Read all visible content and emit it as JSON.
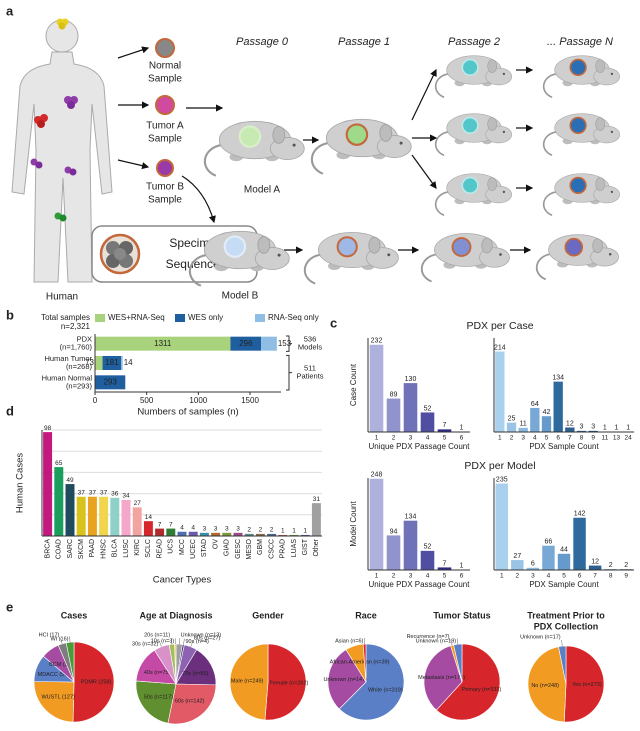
{
  "figure": {
    "panel_labels": [
      "a",
      "b",
      "c",
      "d",
      "e"
    ]
  },
  "diagram": {
    "passages": [
      "Passage 0",
      "Passage 1",
      "Passage 2",
      "... Passage N"
    ],
    "samples": [
      [
        "Normal",
        "Sample"
      ],
      [
        "Tumor A",
        "Sample"
      ],
      [
        "Tumor B",
        "Sample"
      ]
    ],
    "specimen": [
      "Specimen",
      "Sequenced"
    ],
    "human": "Human",
    "models": [
      "Model A",
      "Model B"
    ]
  },
  "chart_data": [
    {
      "type": "hbar",
      "stacked": true,
      "total_label": "Total samples",
      "total": "n=2,321",
      "categories": [
        [
          "PDX",
          "(n=1,760)"
        ],
        [
          "Human Tumor",
          "(n=268)"
        ],
        [
          "Human Normal",
          "(n=293)"
        ]
      ],
      "series": [
        {
          "name": "WES+RNA-Seq",
          "color": "#a8d37c",
          "values": [
            1311,
            73,
            null
          ]
        },
        {
          "name": "WES only",
          "color": "#1f5f9f",
          "values": [
            296,
            181,
            293
          ]
        },
        {
          "name": "RNA-Seq only",
          "color": "#8fbde3",
          "values": [
            153,
            14,
            null
          ]
        }
      ],
      "brackets": [
        {
          "value": 536,
          "label": "Models"
        },
        {
          "value": 511,
          "label": "Patients"
        }
      ],
      "xlim": [
        0,
        1800
      ],
      "xticks": [
        0,
        500,
        1000,
        1500
      ],
      "xlabel": "Numbers of samples (n)"
    },
    {
      "type": "bar",
      "title": "PDX per Case",
      "ylabel": "Case Count",
      "xlabel": "Unique PDX Passage Count",
      "categories": [
        "1",
        "2",
        "3",
        "4",
        "5",
        "6"
      ],
      "values": [
        232,
        89,
        130,
        52,
        7,
        1
      ],
      "colors": [
        "#aeb1dc",
        "#9093cc",
        "#7072b8",
        "#4f4ea1",
        "#2e2b86",
        "#1b1766"
      ],
      "ylim": [
        0,
        250
      ]
    },
    {
      "type": "bar",
      "xlabel": "PDX Sample Count",
      "categories": [
        "1",
        "2",
        "3",
        "4",
        "5",
        "6",
        "7",
        "8",
        "9",
        "11",
        "13",
        "24"
      ],
      "values": [
        214,
        25,
        11,
        64,
        42,
        134,
        12,
        3,
        3,
        1,
        1,
        1
      ],
      "colors": [
        "#a9d0ec",
        "#9ac4e6",
        "#8bb8df",
        "#78a9d6",
        "#6699cc",
        "#2f6a9f",
        "#2b5f92",
        "#275585",
        "#234b78",
        "#1f416b",
        "#1b375e",
        "#172d51"
      ],
      "ylim": [
        0,
        250
      ]
    },
    {
      "type": "bar",
      "title": "PDX per Model",
      "ylabel": "Model Count",
      "xlabel": "Unique PDX Passage Count",
      "categories": [
        "1",
        "2",
        "3",
        "4",
        "5",
        "6"
      ],
      "values": [
        248,
        94,
        134,
        52,
        7,
        1
      ],
      "colors": [
        "#aeb1dc",
        "#9093cc",
        "#7072b8",
        "#4f4ea1",
        "#2e2b86",
        "#1b1766"
      ],
      "ylim": [
        0,
        250
      ]
    },
    {
      "type": "bar",
      "xlabel": "PDX Sample Count",
      "categories": [
        "1",
        "2",
        "3",
        "4",
        "5",
        "6",
        "7",
        "8",
        "9"
      ],
      "values": [
        235,
        27,
        6,
        66,
        44,
        142,
        12,
        2,
        2
      ],
      "colors": [
        "#a9d0ec",
        "#9ac4e6",
        "#8bb8df",
        "#78a9d6",
        "#6699cc",
        "#2f6a9f",
        "#2b5f92",
        "#275585",
        "#234b78"
      ],
      "ylim": [
        0,
        250
      ]
    },
    {
      "type": "bar",
      "ylabel": "Human Cases",
      "xlabel": "Cancer Types",
      "categories": [
        "BRCA",
        "COAD",
        "SARC",
        "SKCM",
        "PAAD",
        "HNSC",
        "BLCA",
        "LUSC",
        "KIRC",
        "SCLC",
        "READ",
        "UCS",
        "MCC",
        "UCEC",
        "STAD",
        "OV",
        "GIAD",
        "GESC",
        "MESO",
        "GBM",
        "CSCC",
        "PRAD",
        "LUAS",
        "GIST",
        "Other"
      ],
      "values": [
        98,
        65,
        49,
        37,
        37,
        37,
        36,
        34,
        27,
        14,
        7,
        7,
        4,
        4,
        3,
        3,
        3,
        3,
        2,
        2,
        2,
        1,
        1,
        1,
        31
      ],
      "colors": [
        "#c4177f",
        "#1b9e5b",
        "#1f4b5c",
        "#d8c21c",
        "#e9a31f",
        "#f1d54d",
        "#8fd1c8",
        "#f4a7c9",
        "#f2a4a0",
        "#d7262b",
        "#b02c2c",
        "#2f7d33",
        "#4d6fb0",
        "#6a5bb0",
        "#3a8fb0",
        "#b06a2a",
        "#7a9a3a",
        "#9a4a8a",
        "#5a8a8a",
        "#8a6a4a",
        "#4a6a8a",
        "#aa5a5a",
        "#6a8a4a",
        "#5a5a9a",
        "#a0a0a0"
      ],
      "ylim": [
        0,
        100
      ],
      "ygrid": [
        20,
        40,
        60,
        80,
        100
      ]
    },
    {
      "type": "pie",
      "title": "Cases",
      "categories": [
        "PDMR",
        "WUSTL",
        "MDACC",
        "BCM",
        "HCI",
        "WI"
      ],
      "values": [
        258,
        127,
        56,
        38,
        17,
        16
      ],
      "value_labels": [
        "PDMR (258)",
        "WUSTL (127)",
        "MDACC (56)",
        "BCM (38)",
        "HCI (17)",
        "WI (16)"
      ],
      "colors": [
        "#d7262b",
        "#f29b22",
        "#5b7fc6",
        "#a54ba2",
        "#7d7d7d",
        "#4a9a3a"
      ]
    },
    {
      "type": "pie",
      "title": "Age at Diagnosis",
      "categories": [
        "Unknown",
        "90s",
        "80s",
        "70s",
        "60s",
        "50s",
        "40s",
        "30s",
        "20s",
        "10s"
      ],
      "values": [
        13,
        4,
        27,
        85,
        142,
        117,
        75,
        32,
        11,
        3
      ],
      "value_labels": [
        "Unknown (n=13)",
        "90s (n=4)",
        "80s (n=27)",
        "70s (n=85)",
        "60s (n=142)",
        "50s (n=117)",
        "40s (n=75)",
        "30s (n=32)",
        "20s (n=11)",
        "10s (n=3)"
      ],
      "colors": [
        "#9e9e9e",
        "#4b3a80",
        "#8e62b2",
        "#6b2f7e",
        "#e25a66",
        "#5f8f2e",
        "#c44aa6",
        "#d992c8",
        "#a0c060",
        "#f0c040"
      ]
    },
    {
      "type": "pie",
      "title": "Gender",
      "categories": [
        "Female",
        "Male"
      ],
      "values": [
        262,
        249
      ],
      "value_labels": [
        "Female (n=262)",
        "Male (n=249)"
      ],
      "colors": [
        "#d7262b",
        "#f29b22"
      ]
    },
    {
      "type": "pie",
      "title": "Race",
      "categories": [
        "White",
        "Unknown",
        "African-American",
        "Asian"
      ],
      "values": [
        319,
        147,
        39,
        6
      ],
      "value_labels": [
        "White (n=319)",
        "Unknown (n=147)",
        "African-American (n=39)",
        "Asian (n=6)"
      ],
      "colors": [
        "#5b7fc6",
        "#a54ba2",
        "#f29b22",
        "#d7262b"
      ]
    },
    {
      "type": "pie",
      "title": "Tumor Status",
      "categories": [
        "Primary",
        "Metastasis",
        "Recurrence",
        "Unknown"
      ],
      "values": [
        331,
        179,
        7,
        19
      ],
      "value_labels": [
        "Primary (n=331)",
        "Metastasis (n=179)",
        "Recurrence (n=7)",
        "Unknown (n=19)"
      ],
      "colors": [
        "#d7262b",
        "#a54ba2",
        "#f29b22",
        "#5b7fc6"
      ]
    },
    {
      "type": "pie",
      "title": [
        "Treatment Prior to",
        "PDX Collection"
      ],
      "categories": [
        "Yes",
        "No",
        "Unknown"
      ],
      "values": [
        273,
        248,
        17
      ],
      "value_labels": [
        "Yes (n=273)",
        "No (n=248)",
        "Unknown (n=17)"
      ],
      "colors": [
        "#d7262b",
        "#f29b22",
        "#5b7fc6"
      ]
    }
  ]
}
